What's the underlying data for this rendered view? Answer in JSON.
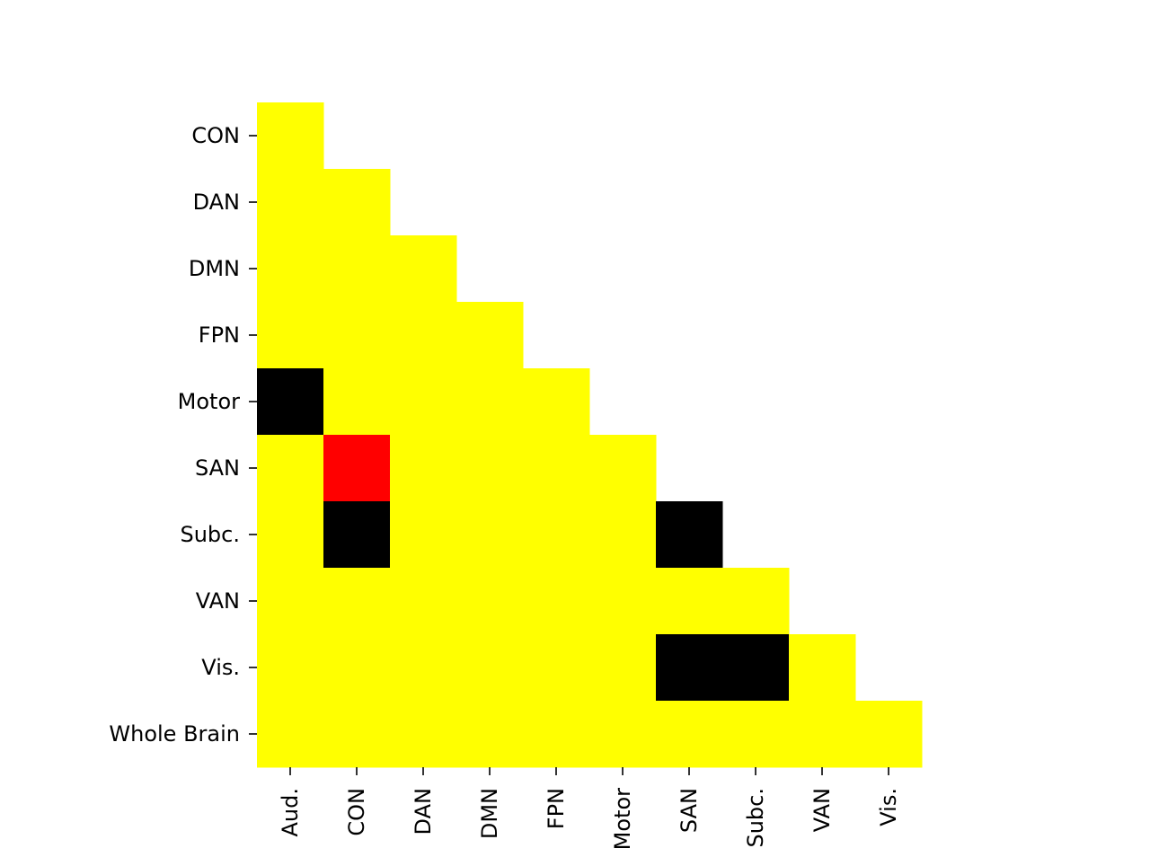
{
  "chart_data": {
    "type": "heatmap",
    "title": "",
    "xlabel": "",
    "ylabel": "",
    "x_categories": [
      "Aud.",
      "CON",
      "DAN",
      "DMN",
      "FPN",
      "Motor",
      "SAN",
      "Subc.",
      "VAN",
      "Vis."
    ],
    "y_categories": [
      "CON",
      "DAN",
      "DMN",
      "FPN",
      "Motor",
      "SAN",
      "Subc.",
      "VAN",
      "Vis.",
      "Whole Brain"
    ],
    "mask": "lower-triangle",
    "color_key": {
      "yellow": "#ffff00",
      "red": "#ff0000",
      "black": "#000000"
    },
    "cells": [
      [
        "yellow",
        null,
        null,
        null,
        null,
        null,
        null,
        null,
        null,
        null
      ],
      [
        "yellow",
        "yellow",
        null,
        null,
        null,
        null,
        null,
        null,
        null,
        null
      ],
      [
        "yellow",
        "yellow",
        "yellow",
        null,
        null,
        null,
        null,
        null,
        null,
        null
      ],
      [
        "yellow",
        "yellow",
        "yellow",
        "yellow",
        null,
        null,
        null,
        null,
        null,
        null
      ],
      [
        "black",
        "yellow",
        "yellow",
        "yellow",
        "yellow",
        null,
        null,
        null,
        null,
        null
      ],
      [
        "yellow",
        "red",
        "yellow",
        "yellow",
        "yellow",
        "yellow",
        null,
        null,
        null,
        null
      ],
      [
        "yellow",
        "black",
        "yellow",
        "yellow",
        "yellow",
        "yellow",
        "black",
        null,
        null,
        null
      ],
      [
        "yellow",
        "yellow",
        "yellow",
        "yellow",
        "yellow",
        "yellow",
        "yellow",
        "yellow",
        null,
        null
      ],
      [
        "yellow",
        "yellow",
        "yellow",
        "yellow",
        "yellow",
        "yellow",
        "black",
        "black",
        "yellow",
        null
      ],
      [
        "yellow",
        "yellow",
        "yellow",
        "yellow",
        "yellow",
        "yellow",
        "yellow",
        "yellow",
        "yellow",
        "yellow"
      ]
    ],
    "colorbar": false,
    "grid": false
  }
}
